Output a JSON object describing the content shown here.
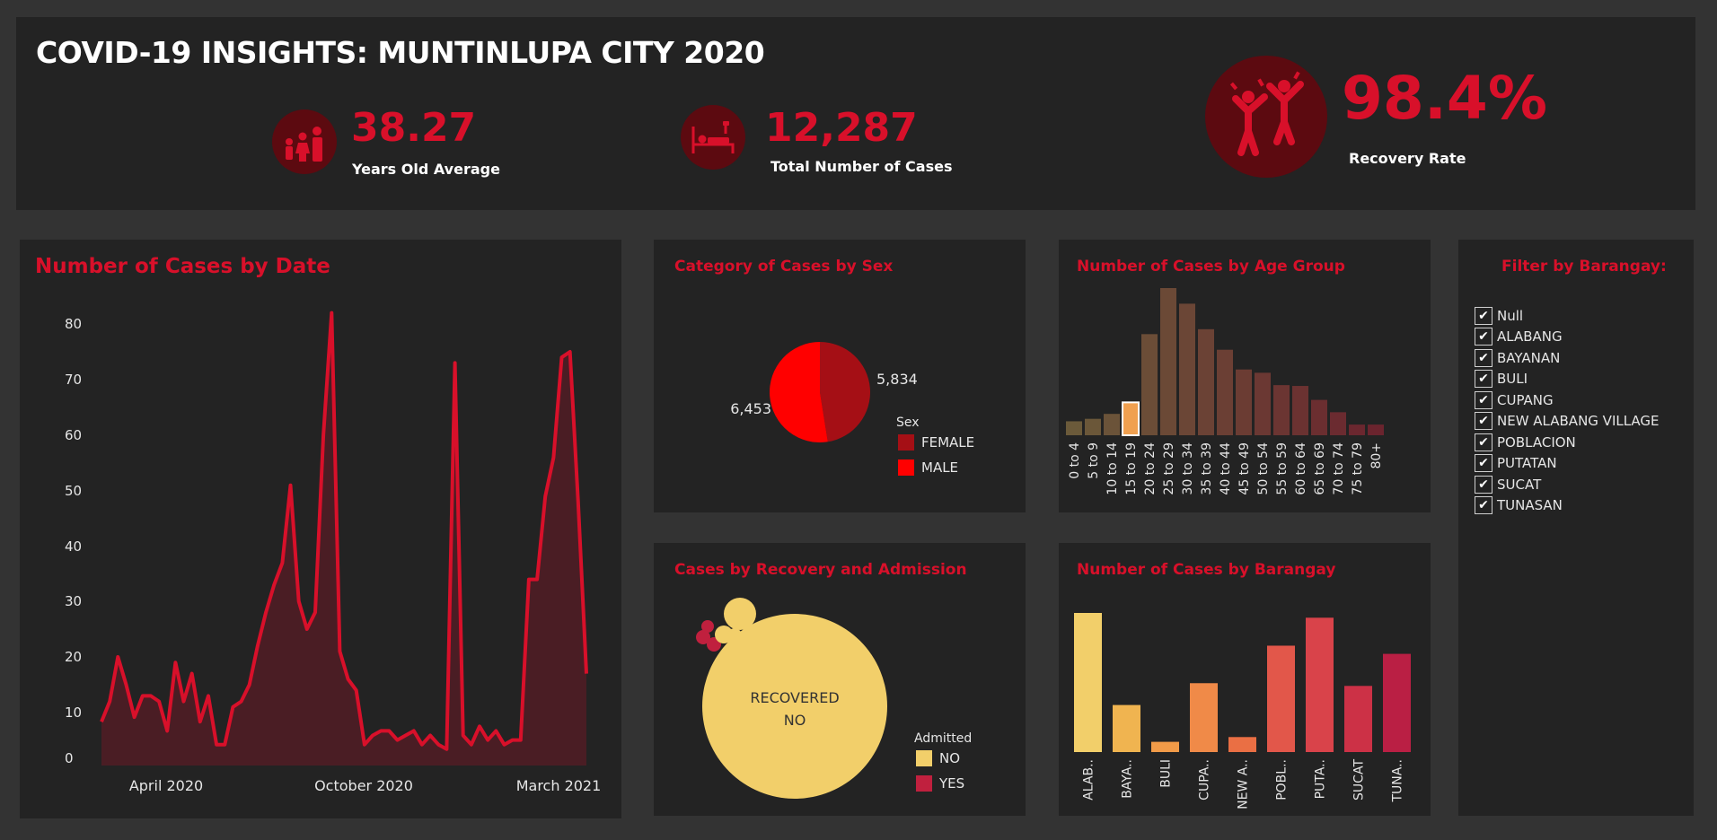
{
  "header": {
    "title": "COVID-19 INSIGHTS: MUNTINLUPA CITY 2020",
    "kpis": [
      {
        "value": "38.27",
        "label": "Years Old Average",
        "icon": "family-icon"
      },
      {
        "value": "12,287",
        "label": "Total Number of Cases",
        "icon": "hospital-bed-icon"
      },
      {
        "value": "98.4%",
        "label": "Recovery Rate",
        "icon": "celebrating-people-icon"
      }
    ]
  },
  "colors": {
    "accent": "#d8102a",
    "panel": "#232323",
    "background": "#333333",
    "female": "#a50f15",
    "male": "#ff0000",
    "admitted_no": "#f2cf6a",
    "admitted_yes": "#c0203e"
  },
  "chart_data": [
    {
      "type": "area",
      "title": "Number of Cases by Date",
      "x_tick_labels": [
        "April 2020",
        "October 2020",
        "March 2021"
      ],
      "y_ticks": [
        0,
        10,
        20,
        30,
        40,
        50,
        60,
        70,
        80
      ],
      "ylim": [
        0,
        80
      ],
      "values": [
        8,
        12,
        20,
        15,
        9,
        13,
        13,
        12,
        6,
        19,
        12,
        17,
        8,
        13,
        3,
        3,
        11,
        12,
        15,
        22,
        28,
        33,
        37,
        51,
        30,
        25,
        28,
        60,
        82,
        21,
        16,
        14,
        3,
        5,
        6,
        6,
        4,
        5,
        6,
        3,
        5,
        3,
        2,
        73,
        5,
        3,
        7,
        4,
        6,
        3,
        4,
        4,
        34,
        34,
        49,
        56,
        74,
        75,
        48,
        17
      ]
    },
    {
      "type": "pie",
      "title": "Category of Cases by Sex",
      "legend_title": "Sex",
      "slices": [
        {
          "label": "FEMALE",
          "value": 5834,
          "display": "5,834"
        },
        {
          "label": "MALE",
          "value": 6453,
          "display": "6,453"
        }
      ]
    },
    {
      "type": "bar",
      "title": "Number of Cases by Age Group",
      "categories": [
        "0 to 4",
        "5 to 9",
        "10 to 14",
        "15 to 19",
        "20 to 24",
        "25 to 29",
        "30 to 34",
        "35 to 39",
        "40 to 44",
        "45 to 49",
        "50 to 54",
        "55 to 59",
        "60 to 64",
        "65 to 69",
        "70 to 74",
        "75 to 79",
        "80+"
      ],
      "values": [
        170,
        200,
        260,
        400,
        1230,
        1790,
        1600,
        1290,
        1040,
        800,
        760,
        610,
        600,
        430,
        280,
        130,
        130
      ],
      "highlighted": "15 to 19"
    },
    {
      "type": "bubble",
      "title": "Cases by Recovery and Admission",
      "legend_title": "Admitted",
      "legend": [
        "NO",
        "YES"
      ],
      "main_label": [
        "RECOVERED",
        "NO"
      ]
    },
    {
      "type": "bar",
      "title": "Number of Cases by Barangay",
      "categories": [
        "ALAB..",
        "BAYA..",
        "BULI",
        "CUPA..",
        "NEW A..",
        "POBL..",
        "PUTA..",
        "SUCAT",
        "TUNA.."
      ],
      "values": [
        2040,
        690,
        150,
        1010,
        220,
        1560,
        1970,
        970,
        1440
      ],
      "colors": [
        "#f2cf6a",
        "#f0b450",
        "#f19b48",
        "#f08a48",
        "#ea6f44",
        "#e2574a",
        "#d9434a",
        "#cc3146",
        "#ba1f44"
      ]
    }
  ],
  "filter": {
    "title": "Filter by Barangay:",
    "items": [
      "Null",
      "ALABANG",
      "BAYANAN",
      "BULI",
      "CUPANG",
      "NEW ALABANG VILLAGE",
      "POBLACION",
      "PUTATAN",
      "SUCAT",
      "TUNASAN"
    ],
    "check_glyph": "✔"
  }
}
